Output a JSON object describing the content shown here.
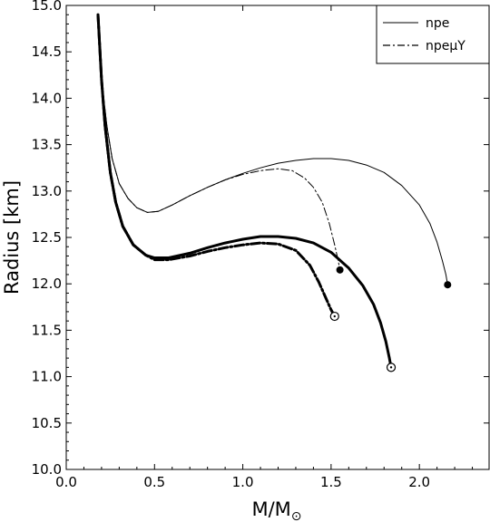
{
  "chart_data": {
    "type": "line",
    "title": "",
    "xlabel": "M/M",
    "xlabel_subscript": "⊙",
    "ylabel": "Radius [km]",
    "xlim": [
      0.0,
      2.4
    ],
    "ylim": [
      10.0,
      15.0
    ],
    "xticks": [
      "0.0",
      "0.5",
      "1.0",
      "1.5",
      "2.0"
    ],
    "yticks": [
      "10.0",
      "10.5",
      "11.0",
      "11.5",
      "12.0",
      "12.5",
      "13.0",
      "13.5",
      "14.0",
      "14.5",
      "15.0"
    ],
    "grid": false,
    "legend_position": "top-right",
    "legend": [
      {
        "label": "npe",
        "style": "solid"
      },
      {
        "label": "npeμY",
        "style": "dash-dot"
      }
    ],
    "series": [
      {
        "name": "npe",
        "style": "solid",
        "weight": "thin",
        "color": "#000000",
        "x": [
          0.18,
          0.2,
          0.23,
          0.26,
          0.3,
          0.35,
          0.4,
          0.46,
          0.52,
          0.6,
          0.7,
          0.8,
          0.9,
          1.0,
          1.1,
          1.2,
          1.3,
          1.4,
          1.5,
          1.6,
          1.7,
          1.8,
          1.9,
          2.0,
          2.06,
          2.1,
          2.13,
          2.15,
          2.16
        ],
        "y": [
          14.9,
          14.2,
          13.7,
          13.35,
          13.08,
          12.92,
          12.82,
          12.77,
          12.78,
          12.85,
          12.95,
          13.04,
          13.12,
          13.19,
          13.25,
          13.3,
          13.33,
          13.35,
          13.35,
          13.33,
          13.28,
          13.2,
          13.06,
          12.85,
          12.65,
          12.45,
          12.25,
          12.1,
          11.99
        ],
        "endpoint": {
          "x": 2.16,
          "y": 11.99,
          "marker": "filled"
        }
      },
      {
        "name": "npeμY",
        "style": "dash-dot",
        "weight": "thin",
        "color": "#000000",
        "x": [
          0.18,
          0.2,
          0.23,
          0.26,
          0.3,
          0.35,
          0.4,
          0.46,
          0.52,
          0.6,
          0.7,
          0.8,
          0.9,
          1.0,
          1.1,
          1.2,
          1.28,
          1.35,
          1.4,
          1.45,
          1.49,
          1.52,
          1.54,
          1.55
        ],
        "y": [
          14.9,
          14.2,
          13.7,
          13.35,
          13.08,
          12.92,
          12.82,
          12.77,
          12.78,
          12.85,
          12.95,
          13.04,
          13.12,
          13.18,
          13.22,
          13.24,
          13.22,
          13.14,
          13.04,
          12.88,
          12.65,
          12.42,
          12.25,
          12.15
        ],
        "endpoint": {
          "x": 1.55,
          "y": 12.15,
          "marker": "filled"
        }
      },
      {
        "name": "",
        "style": "solid",
        "weight": "thick",
        "color": "#000000",
        "x": [
          0.18,
          0.2,
          0.22,
          0.25,
          0.28,
          0.32,
          0.38,
          0.45,
          0.5,
          0.58,
          0.7,
          0.8,
          0.9,
          1.0,
          1.1,
          1.2,
          1.3,
          1.4,
          1.5,
          1.6,
          1.68,
          1.74,
          1.78,
          1.81,
          1.83,
          1.84
        ],
        "y": [
          14.9,
          14.2,
          13.7,
          13.2,
          12.88,
          12.62,
          12.42,
          12.31,
          12.28,
          12.28,
          12.33,
          12.39,
          12.44,
          12.48,
          12.51,
          12.51,
          12.49,
          12.44,
          12.34,
          12.17,
          11.98,
          11.78,
          11.58,
          11.38,
          11.2,
          11.1
        ],
        "endpoint": {
          "x": 1.84,
          "y": 11.1,
          "marker": "open"
        }
      },
      {
        "name": "",
        "style": "dash-dot",
        "weight": "thick",
        "color": "#000000",
        "x": [
          0.18,
          0.2,
          0.22,
          0.25,
          0.28,
          0.32,
          0.38,
          0.45,
          0.5,
          0.58,
          0.7,
          0.8,
          0.9,
          1.0,
          1.1,
          1.2,
          1.3,
          1.38,
          1.43,
          1.47,
          1.5,
          1.52
        ],
        "y": [
          14.9,
          14.2,
          13.7,
          13.2,
          12.88,
          12.62,
          12.42,
          12.31,
          12.26,
          12.26,
          12.3,
          12.35,
          12.39,
          12.42,
          12.44,
          12.43,
          12.36,
          12.2,
          12.02,
          11.85,
          11.72,
          11.65
        ],
        "endpoint": {
          "x": 1.52,
          "y": 11.65,
          "marker": "open"
        }
      }
    ]
  }
}
